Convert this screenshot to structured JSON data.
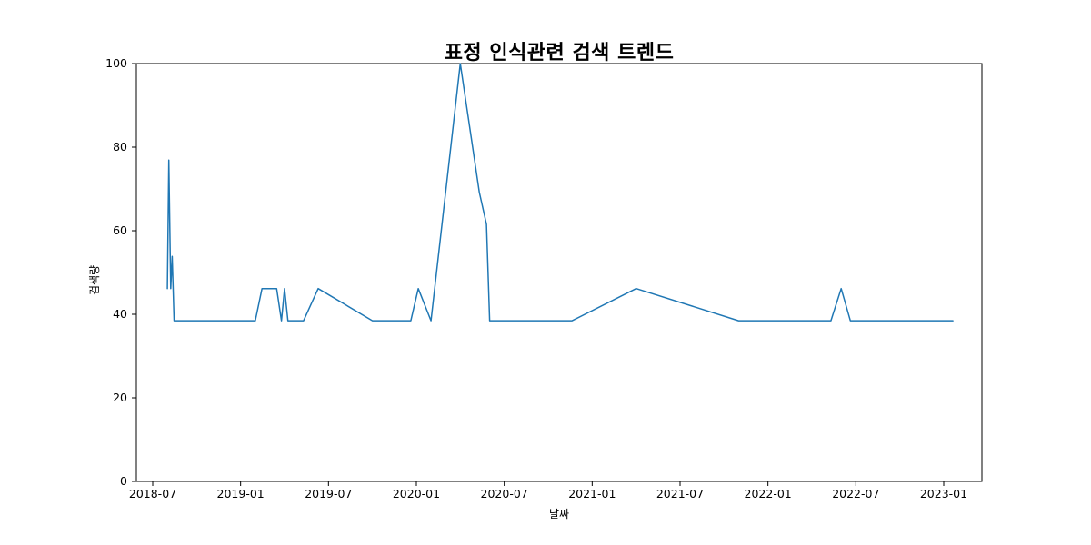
{
  "chart_data": {
    "type": "line",
    "title": "표정 인식관련 검색 트렌드",
    "xlabel": "날짜",
    "ylabel": "검색량",
    "line_color": "#1f77b4",
    "axis_color": "#000000",
    "ylim": [
      0,
      100
    ],
    "y_ticks": [
      0,
      20,
      40,
      60,
      80,
      100
    ],
    "x_ticks": [
      "2018-07",
      "2019-01",
      "2019-07",
      "2020-01",
      "2020-07",
      "2021-01",
      "2021-07",
      "2022-01",
      "2022-07",
      "2023-01"
    ],
    "grid": false,
    "legend": "none",
    "series": [
      {
        "name": "검색량",
        "points": [
          [
            "2018-08-01",
            46.15
          ],
          [
            "2018-08-04",
            76.92
          ],
          [
            "2018-08-08",
            46.15
          ],
          [
            "2018-08-11",
            53.85
          ],
          [
            "2018-08-15",
            38.46
          ],
          [
            "2019-02-01",
            38.46
          ],
          [
            "2019-02-15",
            46.15
          ],
          [
            "2019-03-15",
            46.15
          ],
          [
            "2019-03-25",
            38.46
          ],
          [
            "2019-04-01",
            46.15
          ],
          [
            "2019-04-08",
            38.46
          ],
          [
            "2019-05-10",
            38.46
          ],
          [
            "2019-06-10",
            46.15
          ],
          [
            "2019-10-01",
            38.46
          ],
          [
            "2019-12-20",
            38.46
          ],
          [
            "2020-01-05",
            46.15
          ],
          [
            "2020-02-01",
            38.46
          ],
          [
            "2020-04-01",
            100
          ],
          [
            "2020-05-10",
            69.23
          ],
          [
            "2020-05-25",
            61.54
          ],
          [
            "2020-06-01",
            38.46
          ],
          [
            "2020-11-20",
            38.46
          ],
          [
            "2021-04-01",
            46.15
          ],
          [
            "2021-11-01",
            38.46
          ],
          [
            "2022-05-10",
            38.46
          ],
          [
            "2022-06-01",
            46.15
          ],
          [
            "2022-06-20",
            38.46
          ],
          [
            "2023-01-20",
            38.46
          ]
        ]
      }
    ]
  }
}
